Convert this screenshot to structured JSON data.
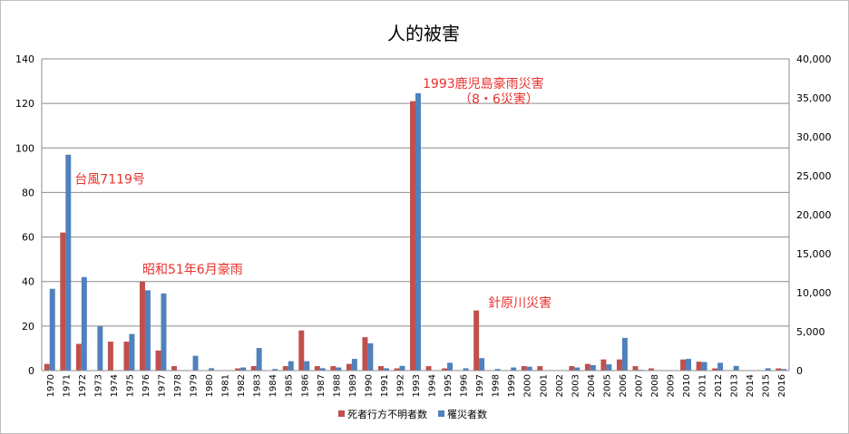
{
  "chart_data": {
    "type": "bar",
    "title": "人的被害",
    "categories": [
      "1970",
      "1971",
      "1972",
      "1973",
      "1974",
      "1975",
      "1976",
      "1977",
      "1978",
      "1979",
      "1980",
      "1981",
      "1982",
      "1983",
      "1984",
      "1985",
      "1986",
      "1987",
      "1988",
      "1989",
      "1990",
      "1991",
      "1992",
      "1993",
      "1994",
      "1995",
      "1996",
      "1997",
      "1998",
      "1999",
      "2000",
      "2001",
      "2002",
      "2003",
      "2004",
      "2005",
      "2006",
      "2007",
      "2008",
      "2009",
      "2010",
      "2011",
      "2012",
      "2013",
      "2014",
      "2015",
      "2016"
    ],
    "series": [
      {
        "name": "死者行方不明者数",
        "axis": "left",
        "color": "#c0504d",
        "values": [
          3,
          62,
          12,
          0,
          13,
          13,
          40,
          9,
          2,
          0,
          0,
          0,
          1,
          2,
          0,
          2,
          18,
          2,
          2,
          3,
          15,
          2,
          1,
          121,
          2,
          1,
          0,
          27,
          0,
          0,
          2,
          2,
          0,
          2,
          3,
          5,
          5,
          2,
          1,
          0,
          5,
          4,
          1,
          0,
          0,
          0,
          1
        ]
      },
      {
        "name": "罹災者数",
        "axis": "right",
        "color": "#4f81bd",
        "values": [
          10500,
          27700,
          12000,
          5700,
          0,
          4700,
          10300,
          9900,
          0,
          1900,
          300,
          0,
          400,
          2900,
          200,
          1200,
          1200,
          300,
          400,
          1500,
          3500,
          300,
          600,
          35600,
          0,
          1000,
          300,
          1600,
          200,
          400,
          500,
          0,
          0,
          400,
          700,
          800,
          4200,
          100,
          0,
          0,
          1500,
          1100,
          1000,
          600,
          0,
          300,
          200
        ]
      }
    ],
    "yleft": {
      "lim": [
        0,
        140
      ],
      "ticks": [
        "0",
        "20",
        "40",
        "60",
        "80",
        "100",
        "120",
        "140"
      ]
    },
    "yright": {
      "lim": [
        0,
        40000
      ],
      "ticks": [
        "0",
        "5,000",
        "10,000",
        "15,000",
        "20,000",
        "25,000",
        "30,000",
        "35,000",
        "40,000"
      ]
    },
    "grid": true,
    "legend_position": "bottom",
    "annotations": [
      {
        "lines": [
          "台風7119号"
        ],
        "year": "1971",
        "yleft": 84
      },
      {
        "lines": [
          "昭和51年6月豪雨"
        ],
        "year": "1976",
        "yleft": 43.5
      },
      {
        "lines": [
          "1993鹿児島豪雨災害",
          "（8・6災害）"
        ],
        "year": "1993",
        "yleft": 127
      },
      {
        "lines": [
          "針原川災害"
        ],
        "year": "1997",
        "yleft": 28.5
      }
    ]
  }
}
